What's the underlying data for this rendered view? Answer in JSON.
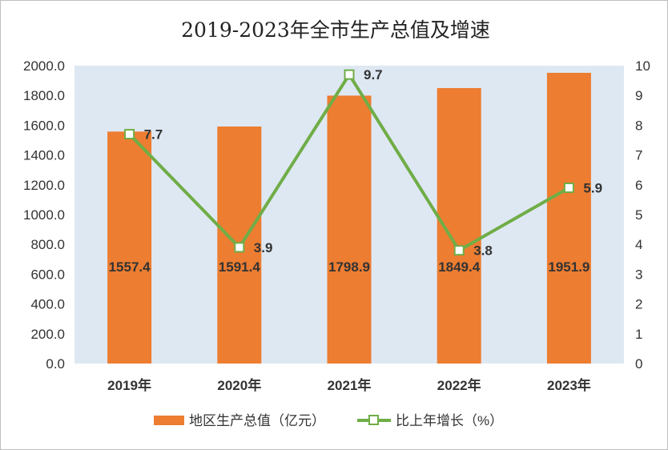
{
  "chart_data": {
    "type": "bar",
    "title": "2019-2023年全市生产总值及增速",
    "categories": [
      "2019年",
      "2020年",
      "2021年",
      "2022年",
      "2023年"
    ],
    "series": [
      {
        "name": "地区生产总值（亿元）",
        "type": "bar",
        "axis": "left",
        "values": [
          1557.4,
          1591.4,
          1798.9,
          1849.4,
          1951.9
        ],
        "labels": [
          "1557.4",
          "1591.4",
          "1798.9",
          "1849.4",
          "1951.9"
        ],
        "color": "#ED7D31"
      },
      {
        "name": "比上年增长（%）",
        "type": "line",
        "axis": "right",
        "values": [
          7.7,
          3.9,
          9.7,
          3.8,
          5.9
        ],
        "labels": [
          "7.7",
          "3.9",
          "9.7",
          "3.8",
          "5.9"
        ],
        "color": "#70AD47"
      }
    ],
    "y_left": {
      "ylim": [
        0,
        2000
      ],
      "ticks": [
        "0.0",
        "200.0",
        "400.0",
        "600.0",
        "800.0",
        "1000.0",
        "1200.0",
        "1400.0",
        "1600.0",
        "1800.0",
        "2000.0"
      ]
    },
    "y_right": {
      "ylim": [
        0,
        10
      ],
      "ticks": [
        "0",
        "1",
        "2",
        "3",
        "4",
        "5",
        "6",
        "7",
        "8",
        "9",
        "10"
      ]
    },
    "grid": false,
    "legend": "bottom",
    "plot_background": "#DEE8F3"
  }
}
